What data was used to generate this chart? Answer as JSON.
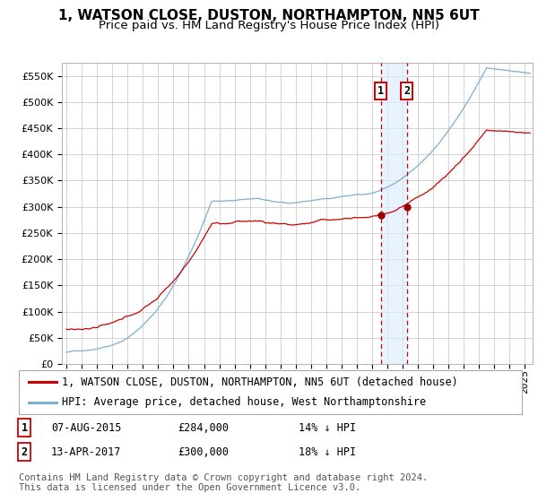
{
  "title": "1, WATSON CLOSE, DUSTON, NORTHAMPTON, NN5 6UT",
  "subtitle": "Price paid vs. HM Land Registry's House Price Index (HPI)",
  "legend_line1": "1, WATSON CLOSE, DUSTON, NORTHAMPTON, NN5 6UT (detached house)",
  "legend_line2": "HPI: Average price, detached house, West Northamptonshire",
  "annotation1": {
    "label": "1",
    "date_str": "07-AUG-2015",
    "price": 284000,
    "pct": "14% ↓ HPI",
    "year": 2015.58
  },
  "annotation2": {
    "label": "2",
    "date_str": "13-APR-2017",
    "price": 300000,
    "pct": "18% ↓ HPI",
    "year": 2017.28
  },
  "hpi_color": "#7bafd4",
  "price_color": "#cc0000",
  "marker_color": "#990000",
  "vline1_color": "#cc0000",
  "vline2_color": "#cc0000",
  "shade_color": "#ddeeff",
  "grid_color": "#cccccc",
  "bg_color": "#ffffff",
  "ylim": [
    0,
    575000
  ],
  "xlim_start": 1994.7,
  "xlim_end": 2025.5,
  "footer": "Contains HM Land Registry data © Crown copyright and database right 2024.\nThis data is licensed under the Open Government Licence v3.0.",
  "title_fontsize": 11,
  "subtitle_fontsize": 9.5,
  "tick_fontsize": 8,
  "legend_fontsize": 8.5,
  "footer_fontsize": 7.5,
  "sale1_y": 284000,
  "sale2_y": 300000
}
